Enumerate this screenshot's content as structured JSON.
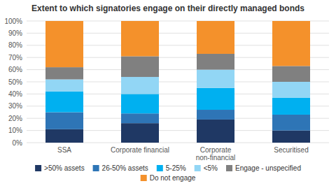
{
  "chart_data": {
    "type": "bar",
    "title": "Extent to which signatories engage on their directly managed bonds",
    "categories": [
      "SSA",
      "Corporate financial",
      "Corporate non-financial",
      "Securitised"
    ],
    "series": [
      {
        "name": ">50% assets",
        "color": "#1f3864",
        "values": [
          11,
          16,
          19,
          10
        ]
      },
      {
        "name": "26-50% assets",
        "color": "#2e75b6",
        "values": [
          14,
          8,
          8,
          13
        ]
      },
      {
        "name": "5-25%",
        "color": "#00b0f0",
        "values": [
          17,
          16,
          18,
          14
        ]
      },
      {
        "name": "<5%",
        "color": "#92d6f5",
        "values": [
          10,
          14,
          15,
          13
        ]
      },
      {
        "name": "Engage - unspecified",
        "color": "#808080",
        "values": [
          10,
          17,
          13,
          13
        ]
      },
      {
        "name": "Do not engage",
        "color": "#f4912b",
        "values": [
          38,
          29,
          27,
          37
        ]
      }
    ],
    "stacked": true,
    "ylim": [
      0,
      100
    ],
    "yticks": [
      {
        "value": 0,
        "label": "0%"
      },
      {
        "value": 10,
        "label": "10%"
      },
      {
        "value": 20,
        "label": "20%"
      },
      {
        "value": 30,
        "label": "30%"
      },
      {
        "value": 40,
        "label": "40%"
      },
      {
        "value": 50,
        "label": "50%"
      },
      {
        "value": 60,
        "label": "60%"
      },
      {
        "value": 70,
        "label": "70%"
      },
      {
        "value": 80,
        "label": "80%"
      },
      {
        "value": 90,
        "label": "90%"
      },
      {
        "value": 100,
        "label": "100%"
      }
    ],
    "grid": true,
    "legend": "bottom"
  }
}
